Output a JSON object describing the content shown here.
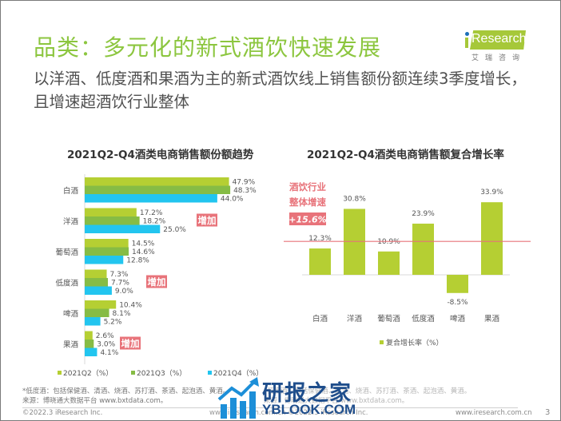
{
  "header": {
    "title": "品类：多元化的新式酒饮快速发展",
    "subtitle": "以洋酒、低度酒和果酒为主的新式酒饮线上销售额份额连续3季度增长，且增速超酒饮行业整体"
  },
  "logo": {
    "brand": "Research",
    "brand_prefix": "i",
    "chinese": "艾瑞咨询"
  },
  "colors": {
    "accent_green": "#8cc63f",
    "q2": "#b5cf33",
    "q3": "#86bc45",
    "q4": "#22c5ef",
    "annotation_pink": "#e8737a",
    "cagr_bar": "#b5cf33"
  },
  "chart_data": [
    {
      "type": "bar",
      "orientation": "horizontal",
      "title": "2021Q2-Q4酒类电商销售额份额趋势",
      "categories": [
        "白酒",
        "洋酒",
        "葡萄酒",
        "低度酒",
        "啤酒",
        "果酒"
      ],
      "series": [
        {
          "name": "2021Q2（%）",
          "values": [
            47.9,
            17.2,
            14.5,
            7.3,
            10.4,
            2.6
          ]
        },
        {
          "name": "2021Q3（%）",
          "values": [
            48.3,
            18.2,
            14.6,
            7.7,
            8.1,
            3.0
          ]
        },
        {
          "name": "2021Q4（%）",
          "values": [
            44.0,
            25.0,
            12.8,
            9.0,
            5.2,
            4.1
          ]
        }
      ],
      "data_labels": [
        [
          "47.9%",
          "48.3%",
          "44.0%"
        ],
        [
          "17.2%",
          "18.2%",
          "25.0%"
        ],
        [
          "14.5%",
          "14.6%",
          "12.8%"
        ],
        [
          "7.3%",
          "7.7%",
          "9.0%"
        ],
        [
          "10.4%",
          "8.1%",
          "5.2%"
        ],
        [
          "2.6%",
          "3.0%",
          "4.1%"
        ]
      ],
      "annotations": [
        {
          "category": "洋酒",
          "text": "增加"
        },
        {
          "category": "低度酒",
          "text": "增加"
        },
        {
          "category": "果酒",
          "text": "增加"
        }
      ],
      "xlim": [
        0,
        50
      ],
      "grid": false,
      "legend": "bottom",
      "legend_labels": [
        "2021Q2（%）",
        "2021Q3（%）",
        "2021Q4（%）"
      ]
    },
    {
      "type": "bar",
      "orientation": "vertical",
      "title": "2021Q2-Q4酒类电商销售额复合增长率",
      "categories": [
        "白酒",
        "洋酒",
        "葡萄酒",
        "低度酒",
        "啤酒",
        "果酒"
      ],
      "series": [
        {
          "name": "复合增长率（%）",
          "values": [
            12.3,
            30.8,
            10.9,
            23.9,
            -8.5,
            33.9
          ]
        }
      ],
      "data_labels": [
        "12.3%",
        "30.8%",
        "10.9%",
        "23.9%",
        "-8.5%",
        "33.9%"
      ],
      "reference_line": {
        "value": 15.6,
        "label_lines": [
          "酒饮行业",
          "整体增速"
        ],
        "value_label": "+15.6%"
      },
      "ylim": [
        -10,
        35
      ],
      "grid": false,
      "legend": "bottom",
      "legend_labels": [
        "复合增长率（%）"
      ]
    }
  ],
  "footer": {
    "note": "*低度酒：包括保健酒、清酒、烧酒、苏打酒、茶酒、起泡酒、黄酒。",
    "source": "来源：博晓通大数据平台 www.bxtdata.com。",
    "copyright": "©2022.3 iResearch Inc.",
    "center_url": "www.iresearch.com.cn   ©2022.3 iResearch Inc.",
    "site": "www.iresearch.com.cn",
    "page": "3"
  },
  "watermark": {
    "text": "研报之家",
    "url": "YBLOOK.COM"
  }
}
